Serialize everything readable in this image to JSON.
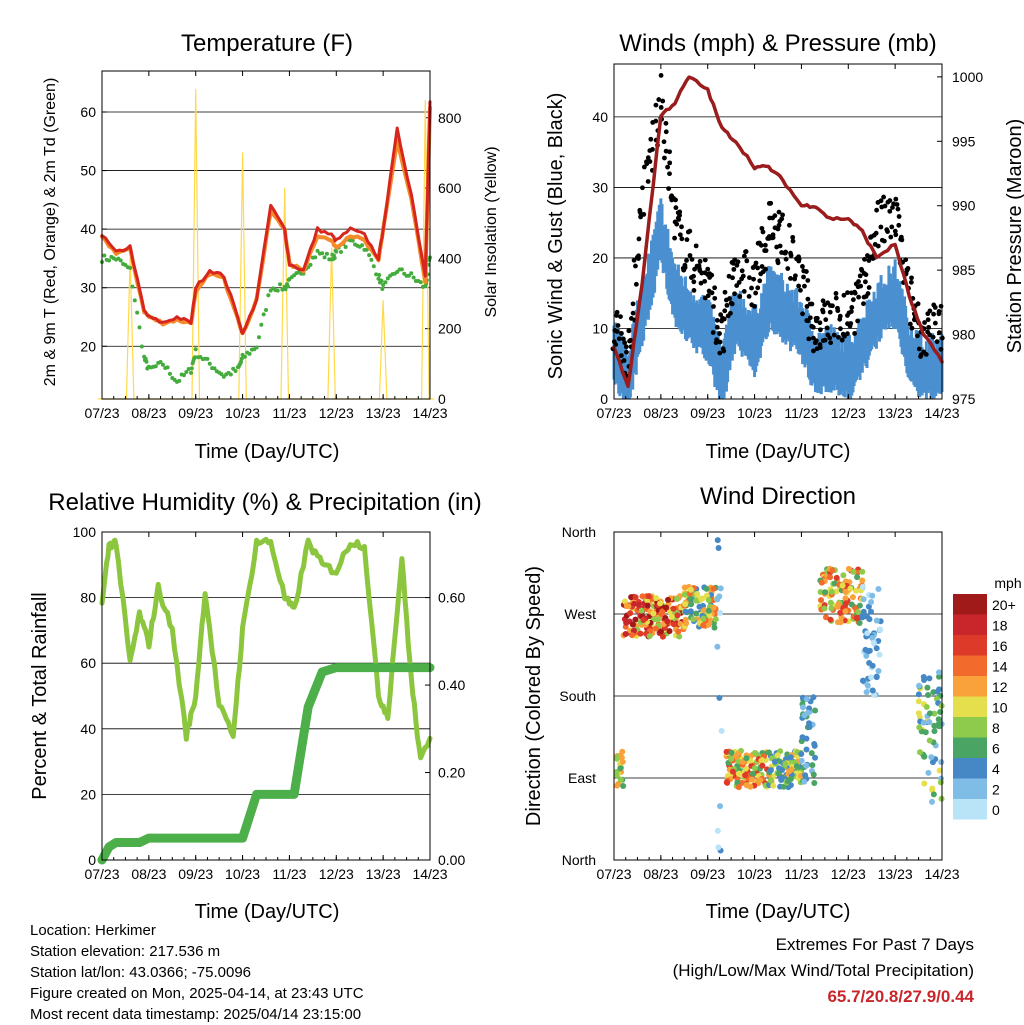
{
  "x_ticks": [
    "07/23",
    "08/23",
    "09/23",
    "10/23",
    "11/23",
    "12/23",
    "13/23",
    "14/23"
  ],
  "palette": {
    "temp2m": "#d7261e",
    "temp9m": "#f48a2a",
    "dewpoint": "#43ac3c",
    "solar": "#ffd94a",
    "wind": "#4a90d0",
    "gust": "#000000",
    "pressure": "#9a1c1c",
    "rh": "#8cc63f",
    "precip": "#4caf4a"
  },
  "info": {
    "location": "Location: Herkimer",
    "elevation": "Station elevation: 217.536 m",
    "latlon": "Station lat/lon: 43.0366; -75.0096",
    "created": "Figure created on Mon, 2025-04-14, at 23:43 UTC",
    "latest": "Most recent data timestamp: 2025/04/14 23:15:00"
  },
  "extremes": {
    "title": "Extremes For Past 7 Days",
    "subtitle": "(High/Low/Max Wind/Total Precipitation)",
    "values": "65.7/20.8/27.9/0.44"
  },
  "chart_data": [
    {
      "type": "line",
      "title": "Temperature (F)",
      "xlabel": "Time (Day/UTC)",
      "ylabel": "2m & 9m T (Red, Orange) & 2m Td (Green)",
      "y2label": "Solar Insolation (Yellow)",
      "ylim": [
        11,
        67
      ],
      "y2lim": [
        0,
        933
      ],
      "yticks": [
        "20",
        "30",
        "40",
        "50",
        "60"
      ],
      "y2ticks": [
        "0",
        "200",
        "400",
        "600",
        "800"
      ],
      "grid": true,
      "x": [
        0,
        0.3,
        0.6,
        0.9,
        1,
        1.3,
        1.6,
        1.9,
        2,
        2.3,
        2.6,
        2.9,
        3,
        3.3,
        3.6,
        3.9,
        4,
        4.3,
        4.6,
        4.9,
        5,
        5.3,
        5.6,
        5.9,
        6,
        6.3,
        6.6,
        6.9,
        7
      ],
      "series": [
        {
          "values": [
            39,
            36,
            37,
            26,
            25,
            24,
            25,
            24,
            30,
            33,
            32,
            25,
            22,
            28,
            44,
            40,
            34,
            33,
            40,
            39,
            38,
            40,
            39,
            35,
            40,
            57,
            46,
            32,
            62
          ]
        },
        {
          "values": [
            38.5,
            36,
            36.5,
            26,
            25,
            24,
            24.5,
            24,
            29,
            32.5,
            31.5,
            25,
            22,
            28,
            43,
            40,
            34,
            33,
            39,
            38,
            37,
            39,
            38,
            34.5,
            40,
            55,
            45,
            31,
            61
          ]
        },
        {
          "values": [
            35,
            35,
            33,
            18,
            16,
            17,
            14,
            16,
            19,
            17,
            15,
            16,
            18,
            20,
            30,
            30,
            31,
            33,
            36,
            35,
            36,
            38,
            37,
            32,
            30,
            33,
            32,
            30,
            35
          ]
        },
        {
          "values": [
            0,
            0,
            400,
            0,
            0,
            0,
            0,
            0,
            880,
            0,
            0,
            0,
            700,
            0,
            0,
            600,
            0,
            0,
            0,
            430,
            0,
            0,
            0,
            0,
            280,
            0,
            0,
            850,
            0
          ]
        }
      ]
    },
    {
      "type": "line",
      "title": "Winds (mph) & Pressure (mb)",
      "xlabel": "Time (Day/UTC)",
      "ylabel": "Sonic Wind & Gust (Blue, Black)",
      "y2label": "Station Pressure (Maroon)",
      "ylim": [
        0,
        47.5
      ],
      "y2lim": [
        975,
        1001
      ],
      "yticks": [
        "0",
        "10",
        "20",
        "30",
        "40"
      ],
      "y2ticks": [
        "975",
        "980",
        "985",
        "990",
        "995",
        "1000"
      ],
      "grid": true,
      "x": [
        0,
        0.3,
        0.6,
        1,
        1.3,
        1.6,
        2,
        2.3,
        2.6,
        3,
        3.3,
        3.6,
        4,
        4.3,
        4.6,
        5,
        5.3,
        5.6,
        6,
        6.3,
        6.6,
        7
      ],
      "series": [
        {
          "values": [
            7,
            3,
            12,
            24,
            15,
            12,
            10,
            3,
            12,
            8,
            14,
            13,
            10,
            5,
            6,
            4,
            8,
            12,
            15,
            7,
            4,
            5
          ]
        },
        {
          "values": [
            11,
            6,
            28,
            42,
            25,
            20,
            17,
            8,
            19,
            16,
            24,
            23,
            16,
            10,
            11,
            12,
            15,
            24,
            26,
            14,
            9,
            10
          ]
        },
        {
          "values": [
            979,
            976,
            984,
            997,
            998,
            1000,
            999,
            996,
            995,
            993,
            993,
            992,
            990,
            990,
            989,
            989,
            988,
            986,
            987,
            983,
            980,
            978
          ]
        }
      ]
    },
    {
      "type": "line",
      "title": "Relative Humidity (%) & Precipitation (in)",
      "xlabel": "Time (Day/UTC)",
      "ylabel": "Percent & Total Rainfall",
      "ylim": [
        0,
        100
      ],
      "y2lim": [
        0,
        0.75
      ],
      "yticks": [
        "0",
        "20",
        "40",
        "60",
        "80",
        "100"
      ],
      "y2ticks": [
        "0.00",
        "0.20",
        "0.40",
        "0.60"
      ],
      "grid": true,
      "x": [
        0,
        0.15,
        0.3,
        0.6,
        0.8,
        1,
        1.2,
        1.5,
        1.8,
        2,
        2.2,
        2.5,
        2.8,
        3,
        3.3,
        3.6,
        3.9,
        4.1,
        4.4,
        4.7,
        5,
        5.3,
        5.6,
        5.9,
        6.1,
        6.4,
        6.6,
        6.8,
        7
      ],
      "series": [
        {
          "values": [
            78,
            96,
            97,
            60,
            75,
            66,
            83,
            70,
            38,
            50,
            82,
            47,
            38,
            70,
            97,
            97,
            80,
            76,
            97,
            90,
            88,
            97,
            96,
            50,
            44,
            92,
            55,
            30,
            38
          ]
        },
        {
          "values": [
            0,
            0.03,
            0.04,
            0.04,
            0.04,
            0.05,
            0.05,
            0.05,
            0.05,
            0.05,
            0.05,
            0.05,
            0.05,
            0.05,
            0.15,
            0.15,
            0.15,
            0.15,
            0.35,
            0.43,
            0.44,
            0.44,
            0.44,
            0.44,
            0.44,
            0.44,
            0.44,
            0.44,
            0.44
          ]
        }
      ]
    },
    {
      "type": "scatter",
      "title": "Wind Direction",
      "xlabel": "Time (Day/UTC)",
      "ylabel": "Direction (Colored By Speed)",
      "yticks": [
        "North",
        "East",
        "South",
        "West",
        "North"
      ],
      "legend": {
        "title": "mph",
        "labels": [
          "20+",
          "18",
          "16",
          "14",
          "12",
          "10",
          "8",
          "6",
          "4",
          "2",
          "0"
        ],
        "colors": [
          "#a11a1a",
          "#c8262b",
          "#dd3a2a",
          "#f26b2c",
          "#f9a23c",
          "#e6df4d",
          "#8ecb4c",
          "#4aa463",
          "#4588c5",
          "#7fbde6",
          "#b9e3f7"
        ]
      },
      "clusters": [
        {
          "x0": 0.05,
          "x1": 0.2,
          "y0": 80,
          "y1": 120,
          "cls": [
            4,
            5,
            6,
            7
          ]
        },
        {
          "x0": 0.2,
          "x1": 1.5,
          "y0": 245,
          "y1": 290,
          "cls": [
            0,
            1,
            2,
            3,
            4,
            5,
            6
          ]
        },
        {
          "x0": 1.5,
          "x1": 2.2,
          "y0": 255,
          "y1": 300,
          "cls": [
            3,
            4,
            5,
            6,
            7,
            8
          ]
        },
        {
          "x0": 2.2,
          "x1": 2.3,
          "y0": 0,
          "y1": 360,
          "cls": [
            8,
            9,
            10
          ]
        },
        {
          "x0": 2.4,
          "x1": 3.3,
          "y0": 80,
          "y1": 120,
          "cls": [
            2,
            3,
            4,
            5,
            6,
            7
          ]
        },
        {
          "x0": 3.3,
          "x1": 4,
          "y0": 80,
          "y1": 120,
          "cls": [
            4,
            5,
            6,
            7,
            8
          ]
        },
        {
          "x0": 4,
          "x1": 4.3,
          "y0": 80,
          "y1": 180,
          "cls": [
            7,
            8,
            9
          ]
        },
        {
          "x0": 4.4,
          "x1": 5.3,
          "y0": 260,
          "y1": 320,
          "cls": [
            2,
            3,
            4,
            5,
            6,
            7
          ]
        },
        {
          "x0": 5.3,
          "x1": 5.7,
          "y0": 180,
          "y1": 300,
          "cls": [
            8,
            9,
            10
          ]
        },
        {
          "x0": 6.5,
          "x1": 7,
          "y0": 60,
          "y1": 210,
          "cls": [
            5,
            6,
            7,
            8,
            9
          ]
        }
      ]
    }
  ]
}
